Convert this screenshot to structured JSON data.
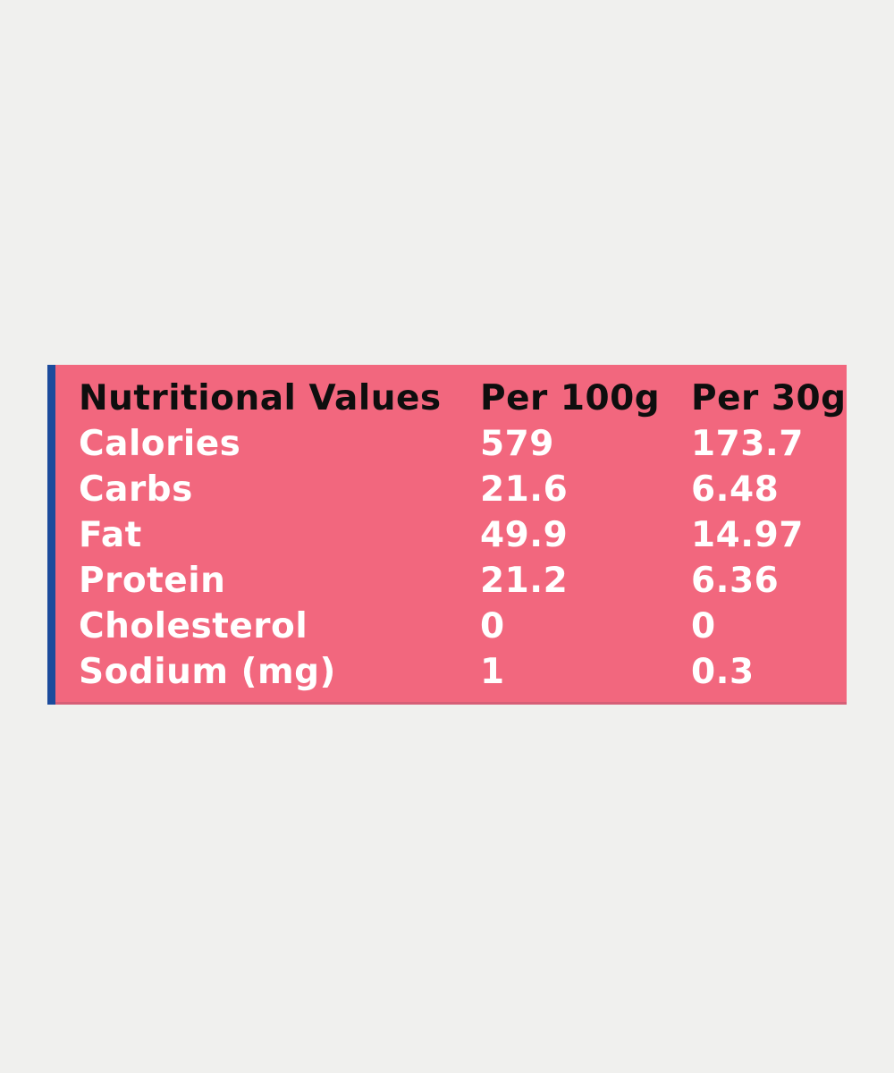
{
  "table": {
    "header": {
      "label": "Nutritional Values",
      "col_per_100g": "Per 100g",
      "col_per_30g": "Per 30g"
    },
    "rows": [
      {
        "label": "Calories",
        "per100g": "579",
        "per30g": "173.7"
      },
      {
        "label": "Carbs",
        "per100g": "21.6",
        "per30g": "6.48"
      },
      {
        "label": "Fat",
        "per100g": "49.9",
        "per30g": "14.97"
      },
      {
        "label": "Protein",
        "per100g": "21.2",
        "per30g": "6.36"
      },
      {
        "label": "Cholesterol",
        "per100g": "0",
        "per30g": "0"
      },
      {
        "label": "Sodium (mg)",
        "per100g": "1",
        "per30g": "0.3"
      }
    ],
    "colors": {
      "page_background": "#f0f0ee",
      "card_pink": "#f2677e",
      "accent_blue": "#1c4b9c",
      "header_text": "#0e0e0e",
      "row_text": "#ffffff"
    }
  }
}
